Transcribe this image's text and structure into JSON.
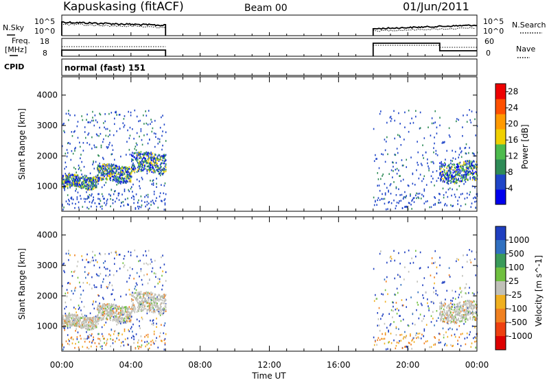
{
  "header": {
    "radar": "Kapuskasing (fitACF)",
    "beam": "Beam 00",
    "date": "01/Jun/2011"
  },
  "top_labels": {
    "nsky": "N.Sky",
    "nsearch": "N.Search",
    "freq_line1": "Freq.",
    "freq_line2": "[MHz]",
    "nave": "Nave",
    "cpid": "CPID",
    "mode": "normal (fast) 151"
  },
  "top_ticks": {
    "nsky_hi": "10^5",
    "nsky_lo": "10^0",
    "nsearch_hi": "10^5",
    "nsearch_lo": "10^0",
    "freq_hi": "18",
    "freq_lo": "8",
    "nave_hi": "60",
    "nave_lo": "0"
  },
  "chart_data": [
    {
      "type": "heatmap",
      "title": "",
      "ylabel": "Slant Range [km]",
      "xlabel": "Time UT",
      "x_ticks": [
        "00:00",
        "04:00",
        "08:00",
        "12:00",
        "16:00",
        "20:00",
        "00:00"
      ],
      "x_range_hours": [
        0,
        24
      ],
      "y_ticks": [
        1000,
        2000,
        3000,
        4000
      ],
      "ylim": [
        180,
        4600
      ],
      "colorbar": {
        "label": "Power [dB]",
        "ticks": [
          4,
          8,
          12,
          16,
          20,
          24,
          28
        ],
        "range": [
          0,
          30
        ],
        "colors": [
          "#0000ee",
          "#1f45c8",
          "#2e8b57",
          "#4dbb4d",
          "#f0d000",
          "#ff9a00",
          "#ff5000",
          "#ee0000"
        ]
      },
      "data_coverage_hours": [
        [
          0,
          6
        ],
        [
          18,
          24
        ]
      ],
      "echo_bands": [
        {
          "start_hour": 0.0,
          "end_hour": 2.0,
          "range_km": [
            1100,
            1250
          ]
        },
        {
          "start_hour": 2.0,
          "end_hour": 4.0,
          "range_km": [
            1300,
            1600
          ]
        },
        {
          "start_hour": 4.0,
          "end_hour": 6.0,
          "range_km": [
            1600,
            2000
          ]
        },
        {
          "start_hour": 21.8,
          "end_hour": 24.0,
          "range_km": [
            1300,
            1700
          ]
        }
      ]
    },
    {
      "type": "heatmap",
      "title": "",
      "ylabel": "Slant Range [km]",
      "xlabel": "Time UT",
      "x_ticks": [
        "00:00",
        "04:00",
        "08:00",
        "12:00",
        "16:00",
        "20:00",
        "00:00"
      ],
      "x_range_hours": [
        0,
        24
      ],
      "y_ticks": [
        1000,
        2000,
        3000,
        4000
      ],
      "ylim": [
        180,
        4600
      ],
      "colorbar": {
        "label": "Velocity [m s^-1]",
        "ticks": [
          "1000",
          "500",
          "100",
          "25",
          "-25",
          "-100",
          "-500",
          "-1000"
        ],
        "colors": [
          "#1f3fc0",
          "#3070c0",
          "#3a9a5a",
          "#70c040",
          "#c0c0b8",
          "#f0b020",
          "#f08020",
          "#ee4010",
          "#dd0000"
        ]
      },
      "data_coverage_hours": [
        [
          0,
          6
        ],
        [
          18,
          24
        ]
      ]
    }
  ]
}
